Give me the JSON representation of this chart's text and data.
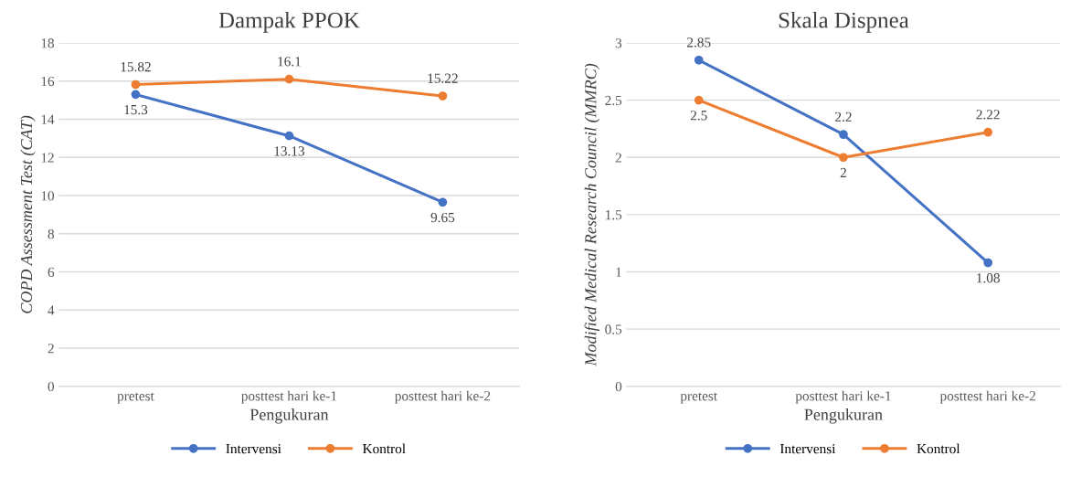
{
  "chart_data": [
    {
      "type": "line",
      "title": "Dampak PPOK",
      "xlabel": "Pengukuran",
      "ylabel": "COPD Assessment Test (CAT)",
      "categories": [
        "pretest",
        "posttest hari ke-1",
        "posttest hari ke-2"
      ],
      "series": [
        {
          "name": "Intervensi",
          "color": "#4472c4",
          "values": [
            15.3,
            13.13,
            9.65
          ]
        },
        {
          "name": "Kontrol",
          "color": "#ed7d31",
          "values": [
            15.82,
            16.1,
            15.22
          ]
        }
      ],
      "ylim": [
        0,
        18
      ],
      "yticks": [
        0,
        2,
        4,
        6,
        8,
        10,
        12,
        14,
        16,
        18
      ],
      "grid": "y",
      "legend": "bottom",
      "marker": "circle",
      "line_style": "solid",
      "data_labels": true
    },
    {
      "type": "line",
      "title": "Skala Dispnea",
      "xlabel": "Pengukuran",
      "ylabel": "Modified Medical Research Council (MMRC)",
      "categories": [
        "pretest",
        "posttest hari ke-1",
        "posttest hari ke-2"
      ],
      "series": [
        {
          "name": "Intervensi",
          "color": "#4472c4",
          "values": [
            2.85,
            2.2,
            1.08
          ]
        },
        {
          "name": "Kontrol",
          "color": "#ed7d31",
          "values": [
            2.5,
            2,
            2.22
          ]
        }
      ],
      "ylim": [
        0,
        3
      ],
      "yticks": [
        0,
        0.5,
        1,
        1.5,
        2,
        2.5,
        3
      ],
      "grid": "y",
      "legend": "bottom",
      "marker": "circle",
      "line_style": "solid",
      "data_labels": true
    }
  ]
}
